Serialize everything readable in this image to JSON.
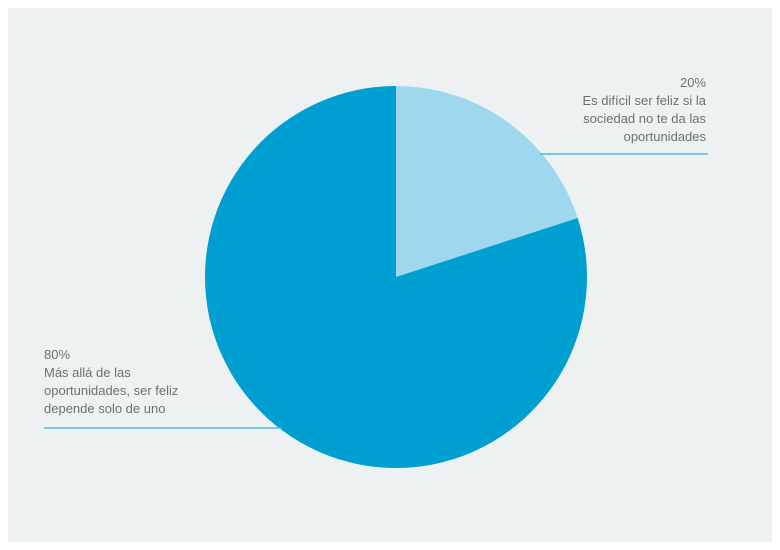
{
  "chart_data": {
    "type": "pie",
    "slices": [
      {
        "value": 20,
        "percent_label": "20%",
        "label_lines": [
          "Es difícil ser feliz si la",
          "sociedad no te da las",
          "oportunidades"
        ],
        "color": "#9fd8ee"
      },
      {
        "value": 80,
        "percent_label": "80%",
        "label_lines": [
          "Más allá de las",
          "oportunidades, ser feliz",
          "depende solo de uno"
        ],
        "color": "#009fd1"
      }
    ],
    "start": "12 o'clock",
    "direction": "clockwise",
    "leader_line_color": "#4fb8e0",
    "legend": "none"
  }
}
